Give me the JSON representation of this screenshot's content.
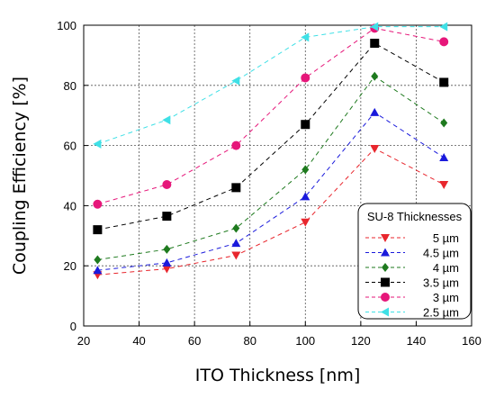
{
  "chart_data": {
    "type": "line",
    "title": "",
    "xlabel": "ITO Thickness [nm]",
    "ylabel": "Coupling Efficiency [%]",
    "xlim": [
      20,
      160
    ],
    "ylim": [
      0,
      100
    ],
    "x_ticks": [
      "20",
      "40",
      "60",
      "80",
      "100",
      "120",
      "140",
      "160"
    ],
    "y_ticks": [
      "0",
      "20",
      "40",
      "60",
      "80",
      "100"
    ],
    "grid": true,
    "legend": {
      "title": "SU-8 Thicknesses",
      "placement": "bottom-right"
    },
    "x": [
      25,
      50,
      75,
      100,
      125,
      150
    ],
    "series": [
      {
        "name": "5 µm",
        "color": "#e8262d",
        "marker": "triangle-down",
        "values": [
          17,
          19,
          23.5,
          34.5,
          59,
          47
        ]
      },
      {
        "name": "4.5 µm",
        "color": "#1a1adc",
        "marker": "triangle-up",
        "values": [
          18.5,
          21,
          27.5,
          43,
          71,
          56
        ]
      },
      {
        "name": "4 µm",
        "color": "#1e7a1e",
        "marker": "diamond",
        "values": [
          22,
          25.5,
          32.5,
          52,
          83,
          67.5
        ]
      },
      {
        "name": "3.5 µm",
        "color": "#000000",
        "marker": "square",
        "values": [
          32,
          36.5,
          46,
          67,
          94,
          81
        ]
      },
      {
        "name": "3 µm",
        "color": "#e6177a",
        "marker": "circle",
        "values": [
          40.5,
          47,
          60,
          82.5,
          99,
          94.5
        ]
      },
      {
        "name": "2.5 µm",
        "color": "#3fe0e6",
        "marker": "triangle-left",
        "values": [
          60.5,
          68.5,
          81.5,
          96,
          99.5,
          99.5
        ]
      }
    ]
  }
}
